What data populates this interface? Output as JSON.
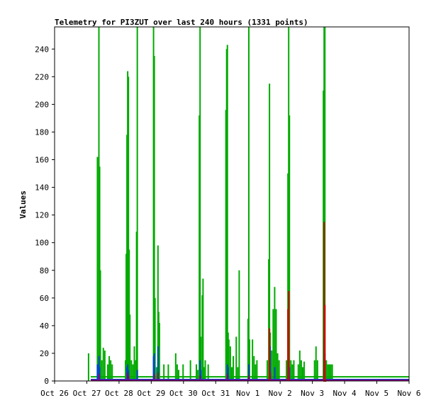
{
  "chart_data": {
    "type": "line",
    "title": "Telemetry for PI3ZUT over last 240 hours (1331 points)",
    "xlabel": "",
    "ylabel": "Values",
    "x_range_hours": [
      0,
      240
    ],
    "ylim": [
      0,
      256
    ],
    "y_ticks": [
      0,
      20,
      40,
      60,
      80,
      100,
      120,
      140,
      160,
      180,
      200,
      220,
      240
    ],
    "x_tick_labels": [
      "Oct 26",
      "Oct 27",
      "Oct 28",
      "Oct 29",
      "Oct 30",
      "Oct 31",
      "Nov 1",
      "Nov 2",
      "Nov 3",
      "Nov 4",
      "Nov 5",
      "Nov 6"
    ],
    "grid": false,
    "legend": "none",
    "colors": {
      "background": "#ffffff",
      "axis": "#000000",
      "green": "#00aa00",
      "blue": "#0044cc",
      "purple": "#880088",
      "red": "#cc0000"
    },
    "series": [
      {
        "color": "#00aa00",
        "baseline": 3,
        "x_start": 24.5,
        "x_end": 240,
        "spikes": [
          [
            23,
            20
          ],
          [
            29,
            162
          ],
          [
            30,
            256
          ],
          [
            30.5,
            155
          ],
          [
            31,
            80
          ],
          [
            32,
            15
          ],
          [
            33,
            24
          ],
          [
            34,
            22
          ],
          [
            36,
            12
          ],
          [
            37,
            18
          ],
          [
            38,
            15
          ],
          [
            39,
            12
          ],
          [
            48,
            15
          ],
          [
            48.5,
            92
          ],
          [
            49,
            178
          ],
          [
            49.5,
            224
          ],
          [
            50,
            220
          ],
          [
            50.5,
            95
          ],
          [
            51,
            48
          ],
          [
            52,
            15
          ],
          [
            53,
            12
          ],
          [
            54,
            25
          ],
          [
            55,
            15
          ],
          [
            55.5,
            108
          ],
          [
            56,
            256
          ],
          [
            67,
            256
          ],
          [
            67.5,
            235
          ],
          [
            68,
            60
          ],
          [
            69,
            10
          ],
          [
            70,
            98
          ],
          [
            70.5,
            50
          ],
          [
            71,
            42
          ],
          [
            74,
            12
          ],
          [
            77,
            12
          ],
          [
            82,
            20
          ],
          [
            83,
            12
          ],
          [
            84,
            8
          ],
          [
            87,
            12
          ],
          [
            92,
            15
          ],
          [
            96,
            12
          ],
          [
            97,
            8
          ],
          [
            98,
            192
          ],
          [
            98.5,
            256
          ],
          [
            99,
            32
          ],
          [
            100,
            62
          ],
          [
            100.5,
            74
          ],
          [
            101,
            10
          ],
          [
            102,
            15
          ],
          [
            104,
            12
          ],
          [
            116,
            196
          ],
          [
            116.5,
            240
          ],
          [
            117,
            243
          ],
          [
            117.5,
            35
          ],
          [
            118,
            30
          ],
          [
            119,
            25
          ],
          [
            120,
            10
          ],
          [
            121,
            18
          ],
          [
            123,
            32
          ],
          [
            124,
            10
          ],
          [
            125,
            80
          ],
          [
            131,
            45
          ],
          [
            131.5,
            256
          ],
          [
            132,
            30
          ],
          [
            134,
            30
          ],
          [
            135,
            18
          ],
          [
            136,
            12
          ],
          [
            137,
            15
          ],
          [
            144,
            15
          ],
          [
            145,
            88
          ],
          [
            145.5,
            215
          ],
          [
            146,
            35
          ],
          [
            147,
            22
          ],
          [
            148,
            52
          ],
          [
            149,
            68
          ],
          [
            150,
            52
          ],
          [
            151,
            20
          ],
          [
            152,
            15
          ],
          [
            157,
            15
          ],
          [
            158,
            150
          ],
          [
            158.5,
            256
          ],
          [
            159,
            192
          ],
          [
            160,
            15
          ],
          [
            161,
            12
          ],
          [
            162,
            15
          ],
          [
            165,
            12
          ],
          [
            166,
            22
          ],
          [
            167,
            15
          ],
          [
            168,
            10
          ],
          [
            169,
            14
          ],
          [
            176,
            15
          ],
          [
            177,
            25
          ],
          [
            178,
            15
          ],
          [
            182,
            210
          ],
          [
            182.5,
            256
          ],
          [
            183,
            256
          ],
          [
            184,
            15
          ],
          [
            185,
            12
          ],
          [
            186,
            12
          ],
          [
            187,
            12
          ],
          [
            188,
            12
          ]
        ]
      },
      {
        "color": "#0044cc",
        "baseline": 1,
        "x_start": 24.5,
        "x_end": 240,
        "spikes": [
          [
            29,
            12
          ],
          [
            30,
            18
          ],
          [
            30.5,
            10
          ],
          [
            49,
            10
          ],
          [
            49.5,
            12
          ],
          [
            50,
            8
          ],
          [
            56,
            8
          ],
          [
            67,
            18
          ],
          [
            67.5,
            20
          ],
          [
            70,
            25
          ],
          [
            98.5,
            15
          ],
          [
            99,
            8
          ],
          [
            117,
            12
          ],
          [
            117.5,
            10
          ],
          [
            131.5,
            12
          ],
          [
            145.5,
            12
          ],
          [
            146,
            25
          ],
          [
            149,
            10
          ],
          [
            158.5,
            15
          ],
          [
            159,
            10
          ],
          [
            182.5,
            30
          ],
          [
            183,
            20
          ]
        ]
      },
      {
        "color": "#880088",
        "baseline": 0.5,
        "x_start": 24.5,
        "x_end": 240,
        "spikes": [
          [
            30,
            5
          ],
          [
            49.5,
            6
          ],
          [
            50,
            4
          ],
          [
            67.5,
            5
          ],
          [
            70,
            6
          ],
          [
            98.5,
            4
          ],
          [
            117,
            5
          ],
          [
            131.5,
            4
          ],
          [
            146,
            6
          ],
          [
            158.5,
            4
          ],
          [
            182.5,
            8
          ]
        ]
      },
      {
        "color": "#cc0000",
        "baseline": 0,
        "x_start": 182,
        "x_end": 184,
        "spikes": [
          [
            145.5,
            38
          ],
          [
            158,
            52
          ],
          [
            158.5,
            65
          ],
          [
            182.5,
            115
          ],
          [
            183,
            55
          ]
        ]
      }
    ]
  }
}
